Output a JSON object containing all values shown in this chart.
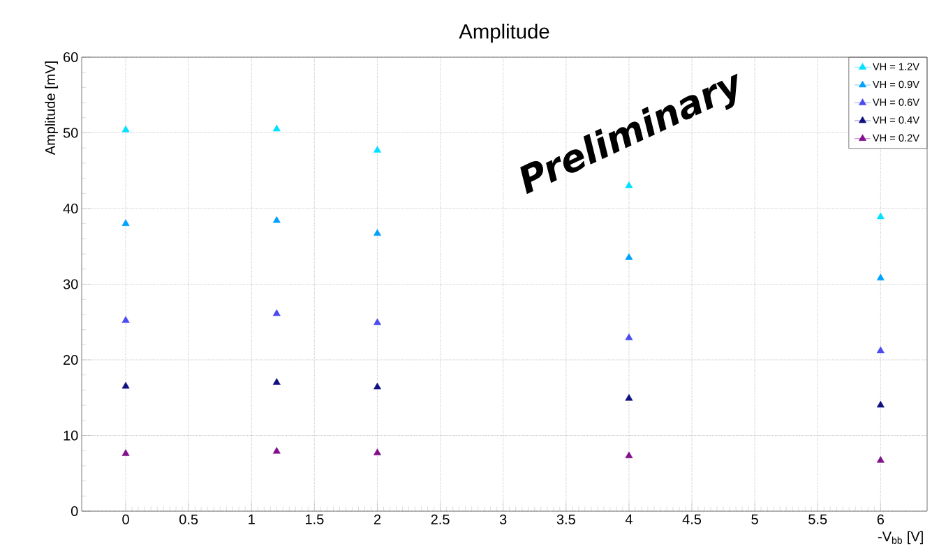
{
  "chart_data": {
    "type": "scatter",
    "title": "Amplitude",
    "xlabel": "-V$_{bb}$ [V]",
    "ylabel": "Amplitude [mV]",
    "x": [
      0,
      1.2,
      2,
      4,
      6
    ],
    "series": [
      {
        "name": "VH = 1.2V",
        "color": "#00e1ff",
        "values": [
          50.4,
          50.5,
          47.7,
          43.0,
          38.9
        ]
      },
      {
        "name": "VH = 0.9V",
        "color": "#00a0ff",
        "values": [
          38.0,
          38.4,
          36.7,
          33.5,
          30.8
        ]
      },
      {
        "name": "VH = 0.6V",
        "color": "#4b4bf0",
        "values": [
          25.2,
          26.1,
          24.9,
          22.9,
          21.2
        ]
      },
      {
        "name": "VH = 0.4V",
        "color": "#101080",
        "values": [
          16.5,
          17.0,
          16.4,
          14.9,
          14.0
        ]
      },
      {
        "name": "VH = 0.2V",
        "color": "#82108c",
        "values": [
          7.6,
          7.9,
          7.7,
          7.3,
          6.7
        ]
      }
    ],
    "xlim": [
      -0.35,
      6.37
    ],
    "ylim": [
      0,
      60
    ],
    "xticks": [
      0,
      0.5,
      1,
      1.5,
      2,
      2.5,
      3,
      3.5,
      4,
      4.5,
      5,
      5.5,
      6
    ],
    "yticks": [
      0,
      10,
      20,
      30,
      40,
      50,
      60
    ],
    "grid": true,
    "legend": "top right",
    "marker": "triangle",
    "annotations": [
      "Preliminary"
    ]
  }
}
